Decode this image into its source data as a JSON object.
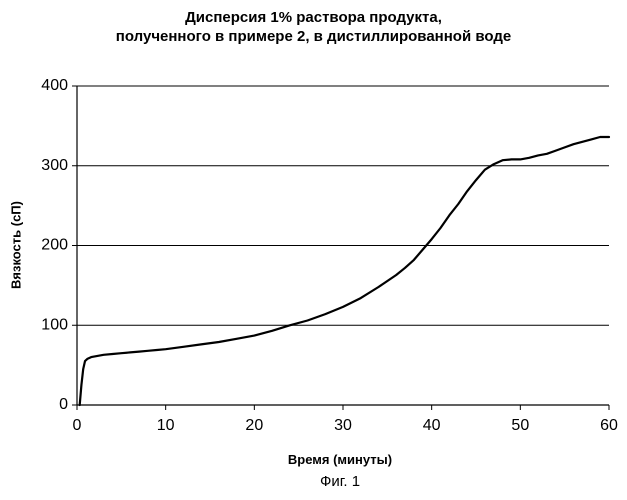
{
  "chart_data": {
    "type": "line",
    "title": "Дисперсия 1% раствора продукта,",
    "subtitle": "полученного в примере 2, в дистиллированной воде",
    "xlabel": "Время (минуты)",
    "ylabel": "Вязкость (сП)",
    "caption": "Фиг. 1",
    "xlim": [
      0,
      60
    ],
    "ylim": [
      0,
      400
    ],
    "xticks": [
      0,
      10,
      20,
      30,
      40,
      50,
      60
    ],
    "yticks": [
      0,
      100,
      200,
      300,
      400
    ],
    "grid": "horizontal",
    "legend": "none",
    "series": [
      {
        "color": "#000000",
        "x": [
          0.3,
          0.5,
          0.7,
          0.9,
          1.2,
          1.6,
          2,
          3,
          4,
          5,
          6,
          7,
          8,
          9,
          10,
          12,
          14,
          16,
          18,
          20,
          22,
          24,
          26,
          28,
          30,
          32,
          34,
          36,
          37,
          38,
          39,
          40,
          41,
          42,
          43,
          44,
          45,
          46,
          47,
          48,
          49,
          50,
          51,
          52,
          53,
          54,
          55,
          56,
          57,
          58,
          59,
          60
        ],
        "y": [
          0,
          25,
          45,
          55,
          58,
          60,
          61,
          63,
          64,
          65,
          66,
          67,
          68,
          69,
          70,
          73,
          76,
          79,
          83,
          87,
          93,
          100,
          106,
          114,
          123,
          134,
          148,
          163,
          172,
          182,
          195,
          208,
          222,
          238,
          252,
          268,
          282,
          295,
          302,
          307,
          308,
          308,
          310,
          313,
          315,
          319,
          323,
          327,
          330,
          333,
          336,
          336
        ]
      }
    ]
  }
}
